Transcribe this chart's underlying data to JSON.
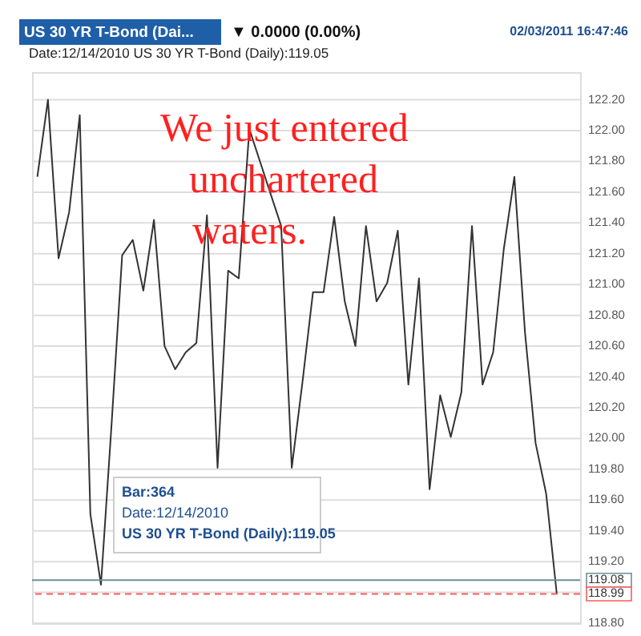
{
  "chart_data": {
    "type": "line",
    "title": "US 30 YR T-Bond (Dai...",
    "subtitle": "Date:12/14/2010 US 30 YR T-Bond (Daily):119.05",
    "annotations": [
      "▼ 0.0000 (0.00%)",
      "02/03/2011 16:47:46",
      "We just entered",
      "unchartered",
      "waters.",
      "Bar:364",
      "Date:12/14/2010",
      "US 30 YR T-Bond (Daily):119.05"
    ],
    "categories": [
      null,
      null,
      null,
      null,
      null,
      null,
      null,
      null,
      null,
      null,
      null,
      null,
      null,
      null,
      null,
      null,
      null,
      null,
      null,
      null,
      null,
      null,
      null,
      null,
      null,
      null,
      null,
      null,
      null,
      null,
      null,
      null,
      null,
      null,
      null,
      null,
      null,
      null,
      null,
      null,
      null,
      null,
      null,
      null,
      null,
      null,
      null,
      null,
      null,
      null
    ],
    "series": [
      {
        "color": "#333333",
        "values": [
          121.7,
          122.2,
          121.17,
          121.47,
          122.1,
          119.51,
          119.05,
          120.09,
          121.19,
          121.29,
          120.96,
          121.42,
          120.6,
          120.45,
          120.56,
          120.62,
          121.45,
          119.81,
          121.09,
          121.04,
          122.01,
          121.8,
          121.59,
          121.38,
          119.81,
          120.36,
          120.95,
          120.95,
          121.44,
          120.89,
          120.6,
          121.38,
          120.89,
          121.01,
          121.35,
          120.35,
          121.04,
          119.67,
          120.28,
          120.01,
          120.3,
          121.38,
          120.35,
          120.56,
          121.23,
          121.7,
          120.69,
          119.97,
          119.64,
          118.99
        ]
      }
    ],
    "ylim": [
      118.8,
      122.38
    ],
    "yticks": [
      {
        "value": 118.8,
        "label": "118.80"
      },
      {
        "value": 119.0,
        "label": null
      },
      {
        "value": 119.2,
        "label": "119.20"
      },
      {
        "value": 119.4,
        "label": "119.40"
      },
      {
        "value": 119.6,
        "label": "119.60"
      },
      {
        "value": 119.8,
        "label": "119.80"
      },
      {
        "value": 120.0,
        "label": "120.00"
      },
      {
        "value": 120.2,
        "label": "120.20"
      },
      {
        "value": 120.4,
        "label": "120.40"
      },
      {
        "value": 120.6,
        "label": "120.60"
      },
      {
        "value": 120.8,
        "label": "120.80"
      },
      {
        "value": 121.0,
        "label": "121.00"
      },
      {
        "value": 121.2,
        "label": "121.20"
      },
      {
        "value": 121.4,
        "label": "121.40"
      },
      {
        "value": 121.6,
        "label": "121.60"
      },
      {
        "value": 121.8,
        "label": "121.80"
      },
      {
        "value": 122.0,
        "label": "122.00"
      },
      {
        "value": 122.2,
        "label": "122.20"
      }
    ],
    "ref_lines": [
      {
        "axis": "y",
        "value": 119.08,
        "label": "119.08",
        "color": "#6f8f9c",
        "line_style": "solid"
      },
      {
        "axis": "y",
        "value": 118.99,
        "label": "118.99",
        "color": "#ff5a5a",
        "line_style": "dashed"
      }
    ],
    "grid": "y",
    "marker": "none",
    "line_style": "solid"
  }
}
